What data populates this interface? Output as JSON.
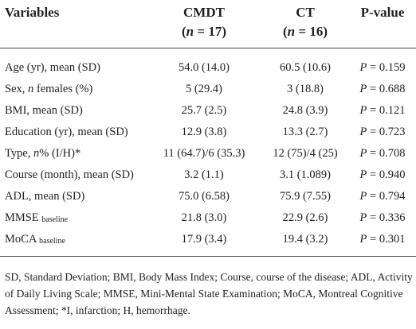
{
  "table": {
    "header": [
      [
        [
          {
            "t": "Variables"
          }
        ]
      ],
      [
        [
          {
            "t": "CMDT"
          }
        ],
        [
          {
            "t": "("
          },
          {
            "t": "n",
            "i": true
          },
          {
            "t": " = 17)"
          }
        ]
      ],
      [
        [
          {
            "t": "CT"
          }
        ],
        [
          {
            "t": "("
          },
          {
            "t": "n",
            "i": true
          },
          {
            "t": " = 16)"
          }
        ]
      ],
      [
        [
          {
            "t": "P-value"
          }
        ]
      ]
    ],
    "rows": [
      [
        [
          {
            "t": "Age (yr), mean (SD)"
          }
        ],
        [
          {
            "t": "54.0 (14.0)"
          }
        ],
        [
          {
            "t": "60.5 (10.6)"
          }
        ],
        [
          {
            "t": "P",
            "i": true
          },
          {
            "t": " = 0.159"
          }
        ]
      ],
      [
        [
          {
            "t": "Sex, "
          },
          {
            "t": "n",
            "i": true
          },
          {
            "t": " females (%)"
          }
        ],
        [
          {
            "t": "5 (29.4)"
          }
        ],
        [
          {
            "t": "3 (18.8)"
          }
        ],
        [
          {
            "t": "P",
            "i": true
          },
          {
            "t": " = 0.688"
          }
        ]
      ],
      [
        [
          {
            "t": "BMI, mean (SD)"
          }
        ],
        [
          {
            "t": "25.7 (2.5)"
          }
        ],
        [
          {
            "t": "24.8 (3.9)"
          }
        ],
        [
          {
            "t": "P",
            "i": true
          },
          {
            "t": " = 0.121"
          }
        ]
      ],
      [
        [
          {
            "t": "Education (yr), mean (SD)"
          }
        ],
        [
          {
            "t": "12.9 (3.8)"
          }
        ],
        [
          {
            "t": "13.3 (2.7)"
          }
        ],
        [
          {
            "t": "P",
            "i": true
          },
          {
            "t": " = 0.723"
          }
        ]
      ],
      [
        [
          {
            "t": "Type, "
          },
          {
            "t": "n",
            "i": true
          },
          {
            "t": "% (I/H)*"
          }
        ],
        [
          {
            "t": "11 (64.7)/6 (35.3)"
          }
        ],
        [
          {
            "t": "12 (75)/4 (25)"
          }
        ],
        [
          {
            "t": "P",
            "i": true
          },
          {
            "t": " = 0.708"
          }
        ]
      ],
      [
        [
          {
            "t": "Course (month), mean (SD)"
          }
        ],
        [
          {
            "t": "3.2 (1.1)"
          }
        ],
        [
          {
            "t": "3.1 (1.089)"
          }
        ],
        [
          {
            "t": "P",
            "i": true
          },
          {
            "t": " = 0.940"
          }
        ]
      ],
      [
        [
          {
            "t": "ADL, mean (SD)"
          }
        ],
        [
          {
            "t": "75.0 (6.58)"
          }
        ],
        [
          {
            "t": "75.9 (7.55)"
          }
        ],
        [
          {
            "t": "P",
            "i": true
          },
          {
            "t": " = 0.794"
          }
        ]
      ],
      [
        [
          {
            "t": "MMSE "
          },
          {
            "t": "baseline",
            "sub": true
          }
        ],
        [
          {
            "t": "21.8 (3.0)"
          }
        ],
        [
          {
            "t": "22.9 (2.6)"
          }
        ],
        [
          {
            "t": "P",
            "i": true
          },
          {
            "t": " = 0.336"
          }
        ]
      ],
      [
        [
          {
            "t": "MoCA "
          },
          {
            "t": "baseline",
            "sub": true
          }
        ],
        [
          {
            "t": "17.9 (3.4)"
          }
        ],
        [
          {
            "t": "19.4 (3.2)"
          }
        ],
        [
          {
            "t": "P",
            "i": true
          },
          {
            "t": " = 0.301"
          }
        ]
      ]
    ]
  },
  "footnote": "SD, Standard Deviation; BMI, Body Mass Index; Course, course of the disease; ADL, Activity of Daily Living Scale; MMSE, Mini-Mental State Examination; MoCA, Montreal Cognitive Assessment; *I, infarction; H, hemorrhage."
}
